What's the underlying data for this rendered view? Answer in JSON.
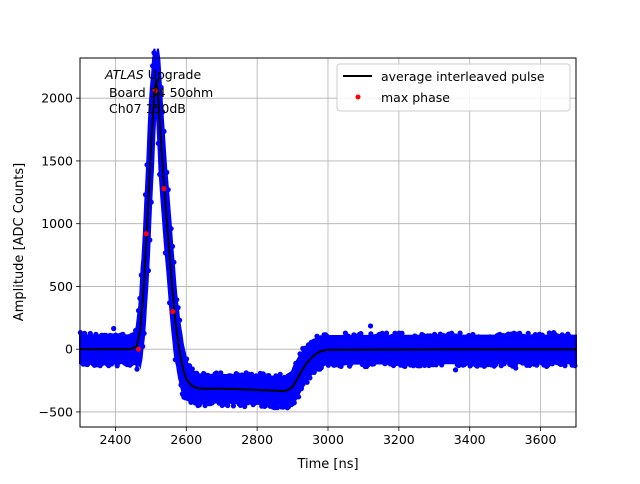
{
  "chart_data": {
    "type": "scatter",
    "xlabel": "Time [ns]",
    "ylabel": "Amplitude [ADC Counts]",
    "xlim": [
      2300,
      3700
    ],
    "ylim": [
      -620,
      2320
    ],
    "grid": true,
    "x_ticks": [
      2400,
      2600,
      2800,
      3000,
      3200,
      3400,
      3600
    ],
    "y_ticks": [
      -500,
      0,
      500,
      1000,
      1500,
      2000
    ],
    "annotation": {
      "italic": "ATLAS",
      "rest": " Upgrade",
      "line2": " Board 34 50ohm",
      "line3": " Ch07 150dB"
    },
    "legend": {
      "placement": "top-right",
      "entries": [
        "average interleaved pulse",
        "max phase"
      ]
    },
    "series": [
      {
        "name": "",
        "kind": "scatter-band",
        "color": "#0000ff",
        "band_halfwidth": 110
      },
      {
        "name": "average interleaved pulse",
        "kind": "line",
        "color": "#000000",
        "x": [
          2300,
          2440,
          2460,
          2470,
          2480,
          2490,
          2500,
          2510,
          2515,
          2520,
          2530,
          2540,
          2550,
          2560,
          2570,
          2580,
          2590,
          2600,
          2615,
          2630,
          2650,
          2700,
          2750,
          2800,
          2850,
          2880,
          2900,
          2920,
          2940,
          2960,
          2980,
          3000,
          3050,
          3200,
          3400,
          3700
        ],
        "y": [
          0,
          0,
          20,
          150,
          500,
          1000,
          1600,
          2050,
          2150,
          2050,
          1600,
          1200,
          850,
          500,
          200,
          0,
          -150,
          -240,
          -290,
          -310,
          -315,
          -315,
          -320,
          -325,
          -330,
          -335,
          -300,
          -200,
          -110,
          -50,
          -15,
          -5,
          -5,
          -3,
          -2,
          -2
        ]
      },
      {
        "name": "max phase",
        "kind": "points",
        "color": "#ff0000",
        "x": [
          2465,
          2487,
          2512,
          2537,
          2562
        ],
        "y": [
          0,
          920,
          2060,
          1280,
          300
        ]
      }
    ],
    "outliers": [
      {
        "x": 3120,
        "y": 185
      },
      {
        "x": 2395,
        "y": 165
      },
      {
        "x": 3360,
        "y": -165
      },
      {
        "x": 3530,
        "y": -150
      }
    ]
  }
}
